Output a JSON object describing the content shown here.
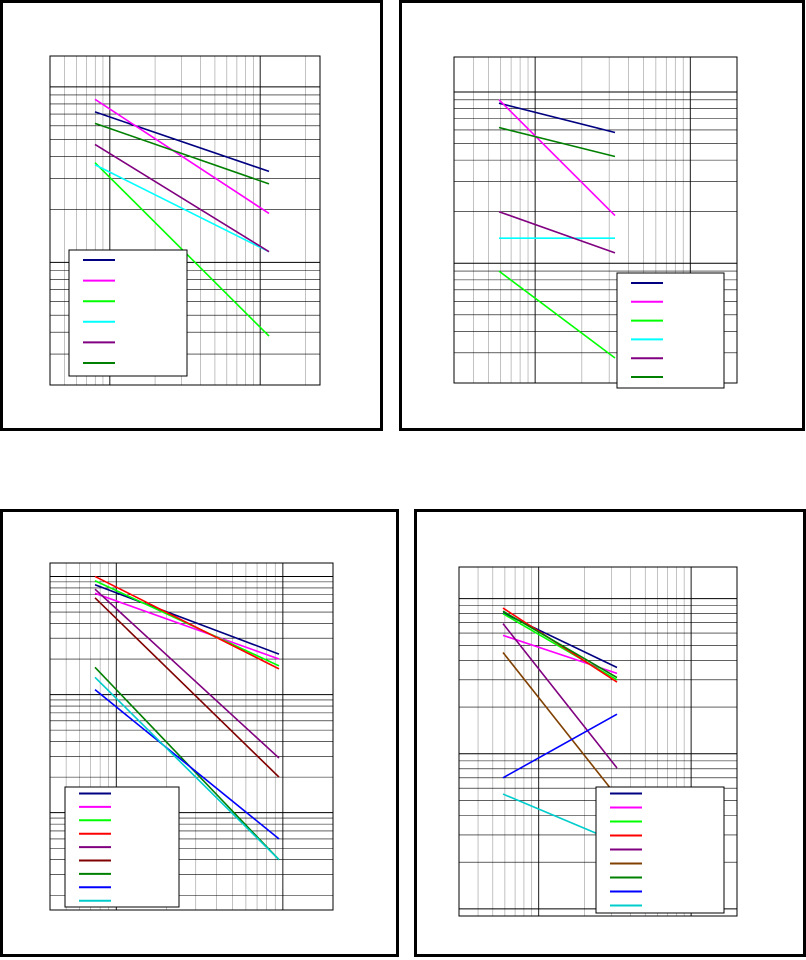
{
  "chart_data": [
    {
      "type": "line",
      "x_scale": "log",
      "y_scale": "log",
      "x": [
        1,
        10
      ],
      "series": [
        {
          "color": "#000080",
          "values": [
            0.72,
            0.33
          ]
        },
        {
          "color": "#ff00ff",
          "values": [
            0.85,
            0.19
          ]
        },
        {
          "color": "#00ff00",
          "values": [
            0.37,
            0.038
          ]
        },
        {
          "color": "#00ffff",
          "values": [
            0.36,
            0.115
          ]
        },
        {
          "color": "#800080",
          "values": [
            0.47,
            0.115
          ]
        },
        {
          "color": "#008000",
          "values": [
            0.62,
            0.28
          ]
        }
      ],
      "legend_entries": 6
    },
    {
      "type": "line",
      "x_scale": "log",
      "y_scale": "log",
      "x": [
        1,
        10
      ],
      "series": [
        {
          "color": "#000080",
          "values": [
            0.86,
            0.58
          ]
        },
        {
          "color": "#ff00ff",
          "values": [
            0.9,
            0.19
          ]
        },
        {
          "color": "#00ff00",
          "values": [
            0.09,
            0.028
          ]
        },
        {
          "color": "#00ffff",
          "values": [
            0.14,
            0.14
          ]
        },
        {
          "color": "#800080",
          "values": [
            0.2,
            0.115
          ]
        },
        {
          "color": "#008000",
          "values": [
            0.62,
            0.42
          ]
        }
      ],
      "legend_entries": 6
    },
    {
      "type": "line",
      "x_scale": "log",
      "y_scale": "log",
      "x": [
        1,
        10
      ],
      "series": [
        {
          "color": "#000080",
          "values": [
            0.85,
            0.22
          ]
        },
        {
          "color": "#ff00ff",
          "values": [
            0.72,
            0.2
          ]
        },
        {
          "color": "#00ff00",
          "values": [
            0.92,
            0.175
          ]
        },
        {
          "color": "#ff0000",
          "values": [
            1.0,
            0.165
          ]
        },
        {
          "color": "#800080",
          "values": [
            0.78,
            0.029
          ]
        },
        {
          "color": "#800000",
          "values": [
            0.66,
            0.02
          ]
        },
        {
          "color": "#008000",
          "values": [
            0.17,
            0.004
          ]
        },
        {
          "color": "#0000ff",
          "values": [
            0.11,
            0.006
          ]
        },
        {
          "color": "#00cccc",
          "values": [
            0.14,
            0.004
          ]
        }
      ],
      "legend_entries": 9
    },
    {
      "type": "line",
      "x_scale": "log",
      "y_scale": "log",
      "x": [
        1,
        10
      ],
      "series": [
        {
          "color": "#000080",
          "values": [
            0.81,
            0.36
          ]
        },
        {
          "color": "#ff00ff",
          "values": [
            0.58,
            0.33
          ]
        },
        {
          "color": "#00ff00",
          "values": [
            0.8,
            0.3
          ]
        },
        {
          "color": "#ff0000",
          "values": [
            0.87,
            0.29
          ]
        },
        {
          "color": "#800080",
          "values": [
            0.69,
            0.081
          ]
        },
        {
          "color": "#804000",
          "values": [
            0.45,
            0.053
          ]
        },
        {
          "color": "#008000",
          "values": [
            0.83,
            0.31
          ]
        },
        {
          "color": "#0000ff",
          "values": [
            0.07,
            0.18
          ]
        },
        {
          "color": "#00cccc",
          "values": [
            0.055,
            0.027
          ]
        }
      ],
      "legend_entries": 9
    }
  ]
}
